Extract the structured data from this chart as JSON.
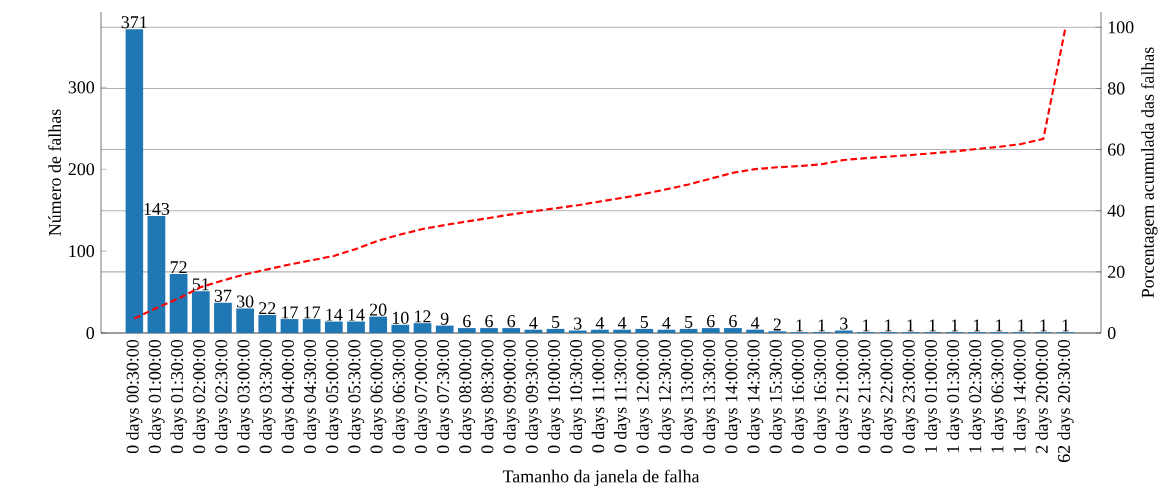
{
  "chart_data": {
    "type": "bar",
    "xlabel": "Tamanho da janela de falha",
    "ylabel": "Número de falhas",
    "y2label": "Porcentagem acumulada das falhas",
    "categories": [
      "0 days 00:30:00",
      "0 days 01:00:00",
      "0 days 01:30:00",
      "0 days 02:00:00",
      "0 days 02:30:00",
      "0 days 03:00:00",
      "0 days 03:30:00",
      "0 days 04:00:00",
      "0 days 04:30:00",
      "0 days 05:00:00",
      "0 days 05:30:00",
      "0 days 06:00:00",
      "0 days 06:30:00",
      "0 days 07:00:00",
      "0 days 07:30:00",
      "0 days 08:00:00",
      "0 days 08:30:00",
      "0 days 09:00:00",
      "0 days 09:30:00",
      "0 days 10:00:00",
      "0 days 10:30:00",
      "0 days 11:00:00",
      "0 days 11:30:00",
      "0 days 12:00:00",
      "0 days 12:30:00",
      "0 days 13:00:00",
      "0 days 13:30:00",
      "0 days 14:00:00",
      "0 days 14:30:00",
      "0 days 15:30:00",
      "0 days 16:00:00",
      "0 days 16:30:00",
      "0 days 21:00:00",
      "0 days 21:30:00",
      "0 days 22:00:00",
      "0 days 23:00:00",
      "1 days 01:00:00",
      "1 days 01:30:00",
      "1 days 02:30:00",
      "1 days 06:30:00",
      "1 days 14:00:00",
      "2 days 20:00:00",
      "62 days 20:30:00"
    ],
    "series": [
      {
        "color": "#1f77b4",
        "data_labels": true,
        "values": [
          371,
          143,
          72,
          51,
          37,
          30,
          22,
          17,
          17,
          14,
          14,
          20,
          10,
          12,
          9,
          6,
          6,
          6,
          4,
          5,
          3,
          4,
          4,
          5,
          4,
          5,
          6,
          6,
          4,
          2,
          1,
          1,
          3,
          1,
          1,
          1,
          1,
          1,
          1,
          1,
          1,
          1,
          1
        ]
      },
      {
        "type": "line",
        "axis": "y2",
        "color": "#ff0000",
        "line_style": "dashed",
        "values": [
          4.7,
          8.2,
          11.3,
          15.0,
          17.2,
          19.2,
          20.8,
          22.4,
          23.8,
          25.2,
          27.5,
          30.2,
          32.2,
          34.0,
          35.3,
          36.5,
          37.6,
          38.8,
          39.8,
          40.8,
          41.8,
          43.0,
          44.2,
          45.5,
          47.0,
          48.6,
          50.5,
          52.4,
          53.6,
          54.2,
          54.6,
          55.2,
          56.6,
          57.2,
          57.7,
          58.2,
          58.8,
          59.4,
          60.2,
          60.9,
          61.8,
          63.5,
          100
        ]
      }
    ],
    "ylim": [
      0,
      392
    ],
    "yticks": [
      0,
      100,
      200,
      300
    ],
    "y2lim": [
      0,
      105
    ],
    "y2ticks": [
      0,
      20,
      40,
      60,
      80,
      100
    ],
    "grid": "y2"
  }
}
